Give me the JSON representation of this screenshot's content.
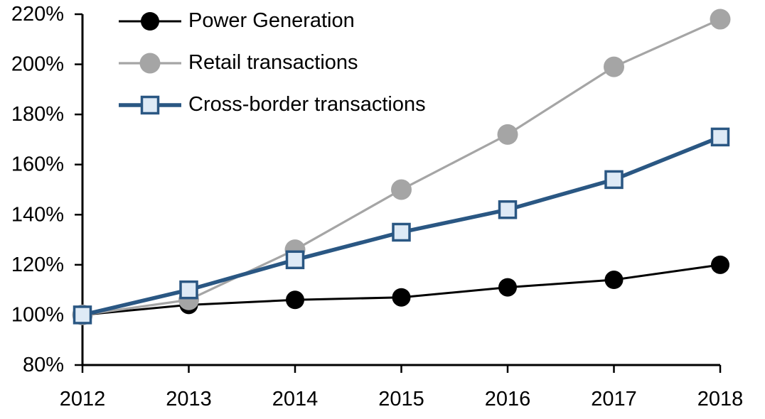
{
  "chart_data": {
    "type": "line",
    "title": "",
    "xlabel": "",
    "ylabel": "",
    "grid": false,
    "legend_position": "top-left",
    "ylim": [
      80,
      220
    ],
    "y_tick_step": 20,
    "y_tick_labels": [
      "80%",
      "100%",
      "120%",
      "140%",
      "160%",
      "180%",
      "200%",
      "220%"
    ],
    "categories": [
      "2012",
      "2013",
      "2014",
      "2015",
      "2016",
      "2017",
      "2018"
    ],
    "series": [
      {
        "name": "Power Generation",
        "values": [
          100,
          104,
          106,
          107,
          111,
          114,
          120
        ],
        "line_color": "#000000",
        "marker": "circle",
        "marker_fill": "#000000",
        "marker_border": "#000000"
      },
      {
        "name": "Retail transactions",
        "values": [
          100,
          106,
          126,
          150,
          172,
          199,
          218
        ],
        "line_color": "#A5A5A5",
        "marker": "circle",
        "marker_fill": "#A5A5A5",
        "marker_border": "#A5A5A5"
      },
      {
        "name": "Cross-border transactions",
        "values": [
          100,
          110,
          122,
          133,
          142,
          154,
          171
        ],
        "line_color": "#2A5783",
        "marker": "square",
        "marker_fill": "#DEEAF6",
        "marker_border": "#2A5783"
      }
    ]
  }
}
